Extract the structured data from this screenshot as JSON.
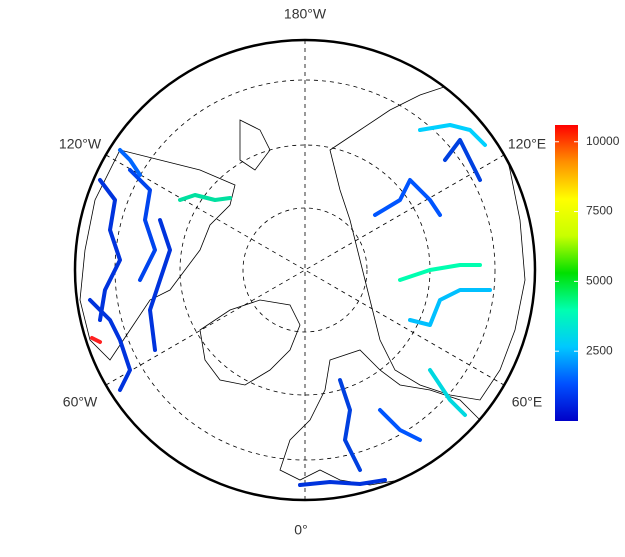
{
  "map": {
    "lon_labels": [
      "180°W",
      "120°W",
      "120°E",
      "60°W",
      "60°E",
      "0°"
    ],
    "colorbar": {
      "lim": [
        0,
        10600
      ],
      "ticks": [
        2500,
        5000,
        7500,
        10000
      ],
      "colors": [
        "#0000c8",
        "#0050ff",
        "#00c8ff",
        "#00ffb0",
        "#00e000",
        "#c8ff00",
        "#ffff00",
        "#ff9000",
        "#ff0000"
      ]
    }
  }
}
